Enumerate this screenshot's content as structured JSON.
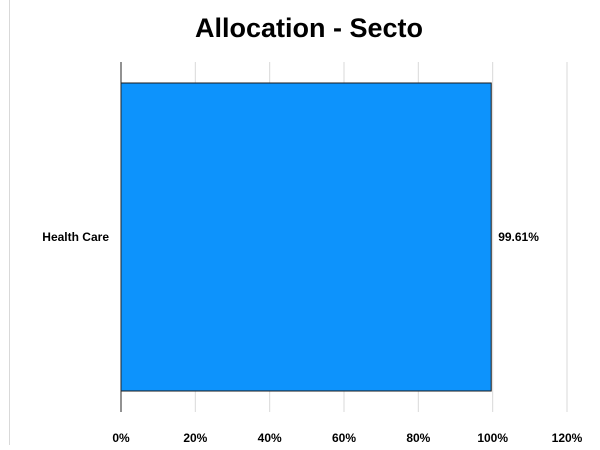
{
  "chart_data": {
    "type": "bar",
    "orientation": "horizontal",
    "title": "Allocation - Secto",
    "categories": [
      "Health Care"
    ],
    "values": [
      99.61
    ],
    "data_labels": [
      "99.61%"
    ],
    "xlim": [
      0,
      120
    ],
    "x_ticks": [
      0,
      20,
      40,
      60,
      80,
      100,
      120
    ],
    "x_tick_labels": [
      "0%",
      "20%",
      "40%",
      "60%",
      "80%",
      "100%",
      "120%"
    ],
    "grid": true,
    "legend": "none",
    "colors": {
      "bar": "#0d93fc",
      "bar_border": "#1a1a1a",
      "grid": "#d9d9d9",
      "axis": "#262626",
      "text": "#000000"
    }
  }
}
